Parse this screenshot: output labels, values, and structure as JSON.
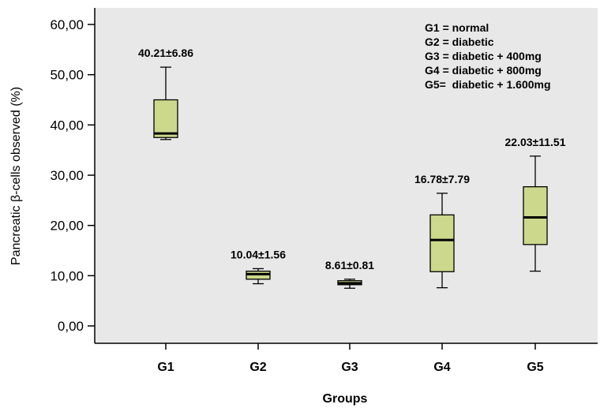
{
  "chart_data": {
    "type": "boxplot",
    "xlabel": "Groups",
    "ylabel": "Pancreatic β-cells observed (%)",
    "ylim": [
      0,
      60
    ],
    "yticks": [
      0,
      10,
      20,
      30,
      40,
      50,
      60
    ],
    "ytick_labels": [
      "0,00",
      "10,00",
      "20,00",
      "30,00",
      "40,00",
      "50,00",
      "60,00"
    ],
    "grid": false,
    "legend_position": "top-right",
    "legend": [
      "G1 = normal",
      "G2 = diabetic",
      "G3 = diabetic + 400mg",
      "G4 = diabetic + 800mg",
      "G5=  diabetic + 1.600mg"
    ],
    "colors": {
      "plot_background": "#e8e8e8",
      "box_fill": "#ccd88c",
      "median": "#000000"
    },
    "categories": [
      "G1",
      "G2",
      "G3",
      "G4",
      "G5"
    ],
    "boxes": [
      {
        "min": 37.1,
        "q1": 37.5,
        "median": 38.3,
        "q3": 45.0,
        "max": 51.5,
        "label": "40.21±6.86"
      },
      {
        "min": 8.4,
        "q1": 9.3,
        "median": 10.3,
        "q3": 10.9,
        "max": 11.4,
        "label": "10.04±1.56"
      },
      {
        "min": 7.5,
        "q1": 8.2,
        "median": 8.5,
        "q3": 9.0,
        "max": 9.3,
        "label": "8.61±0.81"
      },
      {
        "min": 7.6,
        "q1": 10.8,
        "median": 17.1,
        "q3": 22.1,
        "max": 26.4,
        "label": "16.78±7.79"
      },
      {
        "min": 10.9,
        "q1": 16.2,
        "median": 21.6,
        "q3": 27.7,
        "max": 33.8,
        "label": "22.03±11.51"
      }
    ]
  }
}
